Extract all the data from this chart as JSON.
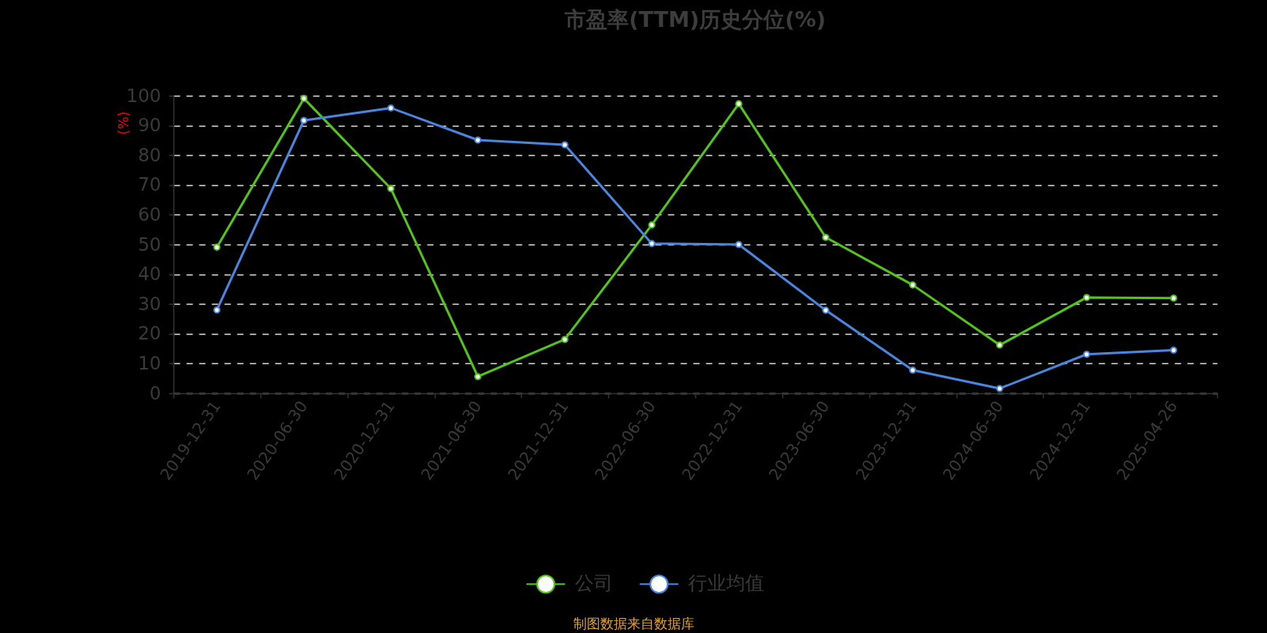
{
  "chart_data": {
    "type": "line",
    "title": "市盈率(TTM)历史分位(%)",
    "ylabel": "(%)",
    "categories": [
      "2019-12-31",
      "2020-06-30",
      "2020-12-31",
      "2021-06-30",
      "2021-12-31",
      "2022-06-30",
      "2022-12-31",
      "2023-06-30",
      "2023-12-31",
      "2024-06-30",
      "2024-12-31",
      "2025-04-26"
    ],
    "series": [
      {
        "name": "公司",
        "color": "#52c41a",
        "values": [
          49.1,
          99.1,
          68.8,
          5.6,
          18.1,
          56.6,
          97.3,
          52.4,
          36.4,
          16.2,
          32.2,
          32.0
        ]
      },
      {
        "name": "行业均值",
        "color": "#4a86e0",
        "values": [
          28.0,
          91.7,
          95.9,
          85.1,
          83.5,
          50.3,
          50.0,
          27.9,
          7.8,
          1.6,
          13.1,
          14.5
        ]
      }
    ],
    "ylim": [
      0,
      100
    ],
    "yticks": [
      0,
      10,
      20,
      30,
      40,
      50,
      60,
      70,
      80,
      90,
      100
    ],
    "grid": "y",
    "legend": "bottom",
    "marker": "circle",
    "annotations": [
      "制图数据来自数据库"
    ]
  }
}
